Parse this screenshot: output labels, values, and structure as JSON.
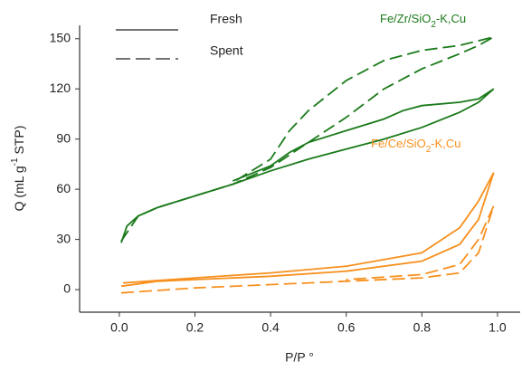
{
  "chart_data": {
    "type": "line",
    "x_label": "P/P °",
    "y_label": [
      "Q (mL g",
      "-1",
      " STP)"
    ],
    "xlim": [
      -0.105,
      1.06
    ],
    "ylim": [
      -13.5,
      158
    ],
    "xticks": [
      {
        "value": 0,
        "label": "0.0"
      },
      {
        "value": 0.2,
        "label": "0.2"
      },
      {
        "value": 0.4,
        "label": "0.4"
      },
      {
        "value": 0.6,
        "label": "0.6"
      },
      {
        "value": 0.8,
        "label": "0.8"
      },
      {
        "value": 1,
        "label": "1.0"
      }
    ],
    "yticks": [
      0,
      30,
      60,
      90,
      120,
      150
    ],
    "samples": [
      {
        "label": [
          "Fe/Zr/SiO",
          "2",
          "-K,Cu"
        ],
        "color": "#1a7a1a",
        "series": [
          {
            "name": "Fresh",
            "dashed": false,
            "x": [
              0.005,
              0.02,
              0.05,
              0.1,
              0.2,
              0.3,
              0.4,
              0.5,
              0.6,
              0.7,
              0.8,
              0.9,
              0.95,
              0.99,
              0.95,
              0.9,
              0.8,
              0.75,
              0.7,
              0.6,
              0.5,
              0.45,
              0.4,
              0.3
            ],
            "values": [
              28,
              38,
              44,
              49,
              56,
              63,
              71,
              78,
              84,
              90,
              97,
              106,
              112,
              120,
              114,
              112,
              110,
              107,
              102,
              95,
              88,
              82,
              74,
              65
            ]
          },
          {
            "name": "Spent",
            "dashed": true,
            "x": [
              0.005,
              0.05,
              0.1,
              0.2,
              0.3,
              0.4,
              0.5,
              0.6,
              0.7,
              0.8,
              0.9,
              0.95,
              0.99,
              0.9,
              0.8,
              0.7,
              0.6,
              0.5,
              0.45,
              0.4,
              0.3
            ],
            "values": [
              29,
              44,
              49,
              56,
              63,
              73,
              88,
              103,
              120,
              132,
              141,
              146,
              151,
              146,
              143,
              137,
              125,
              107,
              95,
              78,
              64
            ]
          }
        ]
      },
      {
        "label": [
          "Fe/Ce/SiO",
          "2",
          "-K,Cu"
        ],
        "color": "#f7901e",
        "series": [
          {
            "name": "Fresh",
            "dashed": false,
            "x": [
              0.005,
              0.1,
              0.2,
              0.4,
              0.6,
              0.8,
              0.9,
              0.95,
              0.99,
              0.95,
              0.9,
              0.8,
              0.6,
              0.4,
              0.2,
              0.01
            ],
            "values": [
              2,
              5,
              6,
              8,
              11,
              17,
              27,
              42,
              70,
              53,
              37,
              22,
              14,
              10,
              7,
              4
            ]
          },
          {
            "name": "Spent",
            "dashed": true,
            "x": [
              0.005,
              0.2,
              0.4,
              0.6,
              0.8,
              0.9,
              0.95,
              0.99,
              0.95,
              0.9,
              0.8,
              0.6
            ],
            "values": [
              -2,
              1,
              3,
              5,
              7,
              10,
              22,
              50,
              30,
              15,
              9,
              6
            ]
          }
        ]
      }
    ]
  }
}
